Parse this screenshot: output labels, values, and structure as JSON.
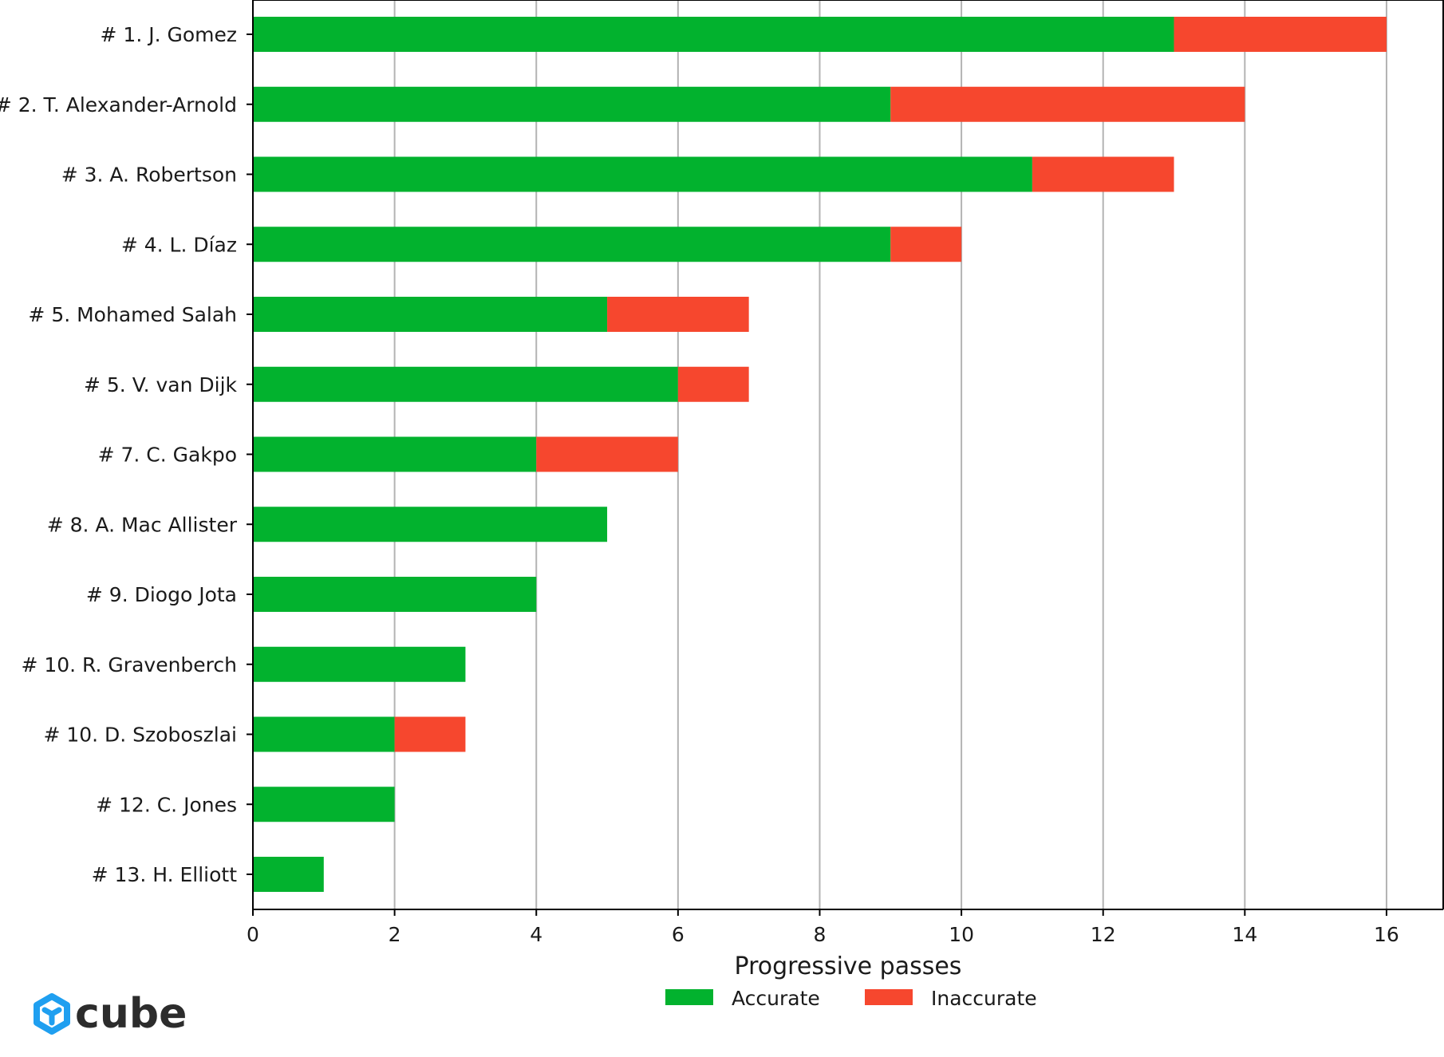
{
  "chart_data": {
    "type": "bar",
    "orientation": "horizontal",
    "stacked": true,
    "categories": [
      "# 1.  J. Gomez",
      "# 2.  T. Alexander-Arnold",
      "# 3.  A. Robertson",
      "# 4.  L. Díaz",
      "# 5.  Mohamed Salah",
      "# 5.  V. van Dijk",
      "# 7.  C. Gakpo",
      "# 8.  A. Mac Allister",
      "# 9.  Diogo Jota",
      "# 10.  R. Gravenberch",
      "# 10.  D. Szoboszlai",
      "# 12.  C. Jones",
      "# 13.  H. Elliott"
    ],
    "series": [
      {
        "name": "Accurate",
        "color": "#02b22e",
        "values": [
          13,
          9,
          11,
          9,
          5,
          6,
          4,
          5,
          4,
          3,
          2,
          2,
          1
        ]
      },
      {
        "name": "Inaccurate",
        "color": "#f6472e",
        "values": [
          3,
          5,
          2,
          1,
          2,
          1,
          2,
          0,
          0,
          0,
          1,
          0,
          0
        ]
      }
    ],
    "xlabel": "Progressive passes",
    "ylabel": "",
    "xlim": [
      0,
      16.8
    ],
    "xticks": [
      0,
      2,
      4,
      6,
      8,
      10,
      12,
      14,
      16
    ],
    "grid": "vertical",
    "grid_color": "#b3b3b3",
    "legend_position": "bottom-center"
  },
  "logo": {
    "text": "cube",
    "icon": "cube-logo-icon",
    "color": "#1f9ff0"
  }
}
